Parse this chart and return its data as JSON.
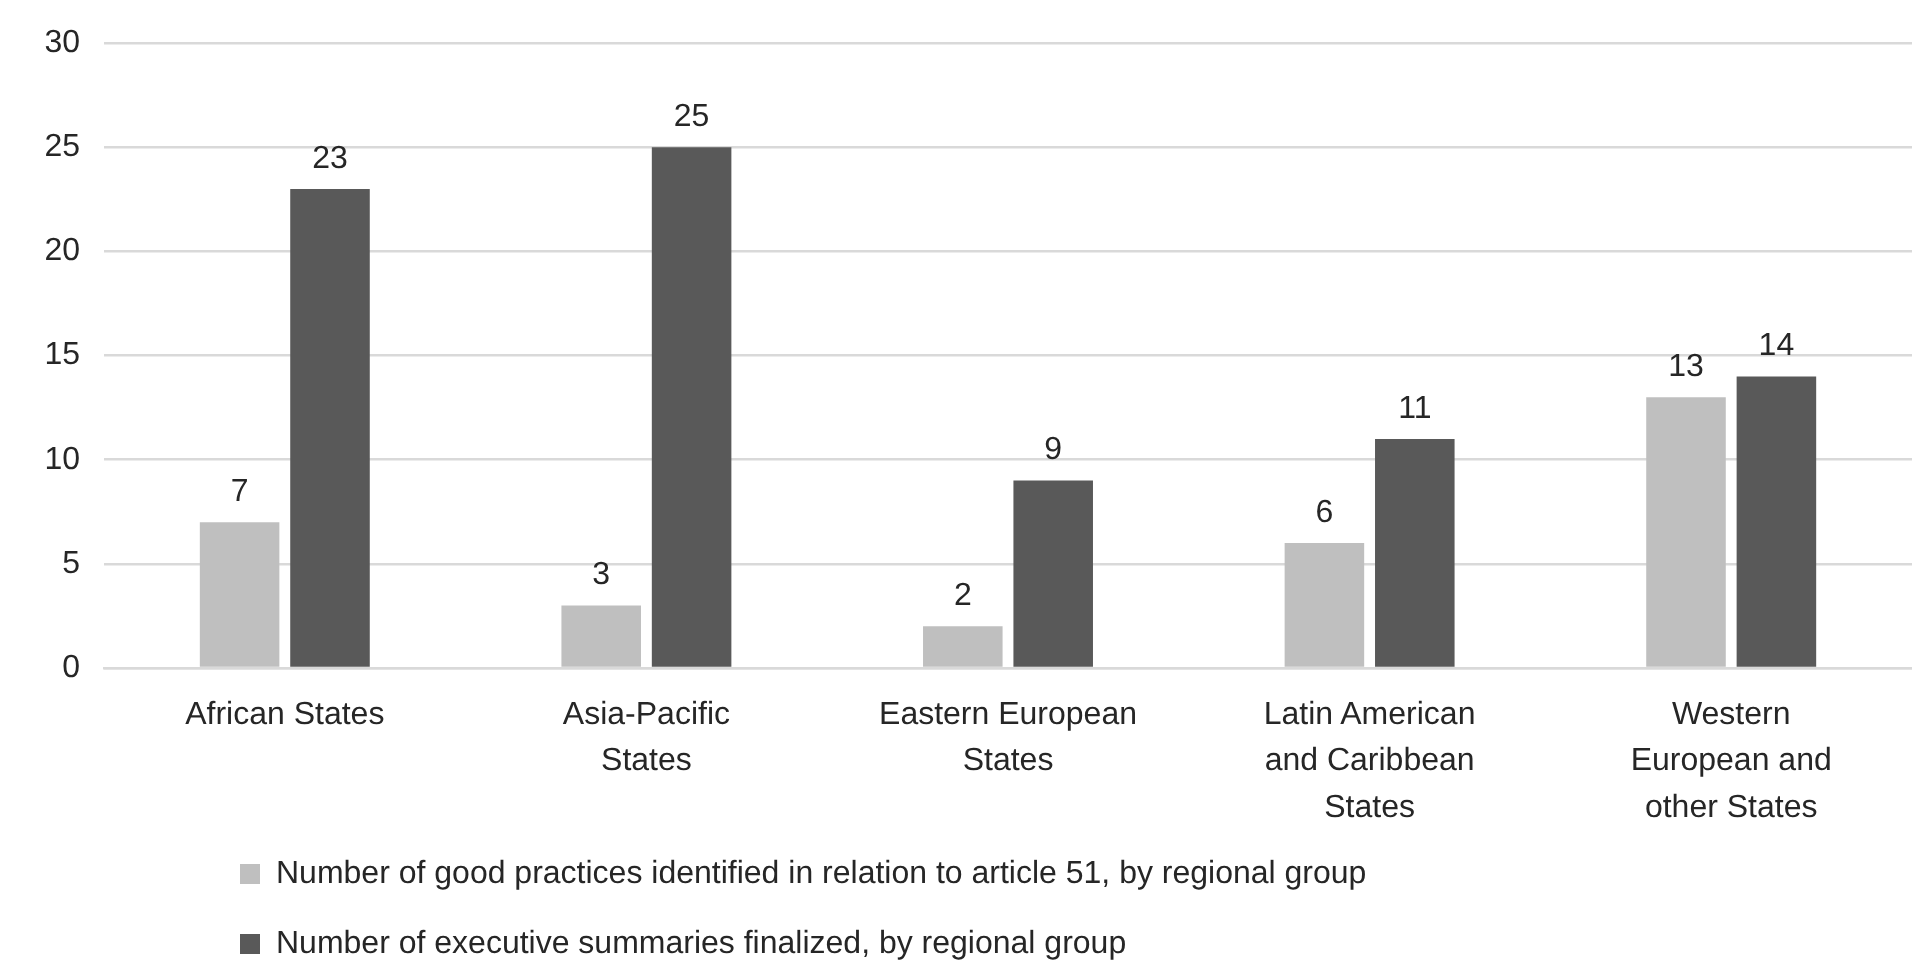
{
  "chart_data": {
    "type": "bar",
    "categories": [
      "African States",
      "Asia-Pacific States",
      "Eastern European States",
      "Latin American and Caribbean States",
      "Western European and other States"
    ],
    "series": [
      {
        "name": "Number of good practices identified in relation to article 51, by regional group",
        "color": "#bfbfbf",
        "values": [
          7,
          3,
          2,
          6,
          13
        ]
      },
      {
        "name": "Number of executive summaries finalized, by regional group",
        "color": "#595959",
        "values": [
          23,
          25,
          9,
          11,
          14
        ]
      }
    ],
    "ylim": [
      0,
      30
    ],
    "yticks": [
      0,
      5,
      10,
      15,
      20,
      25,
      30
    ],
    "grid": "y",
    "legend": "bottom",
    "data_labels": true
  }
}
